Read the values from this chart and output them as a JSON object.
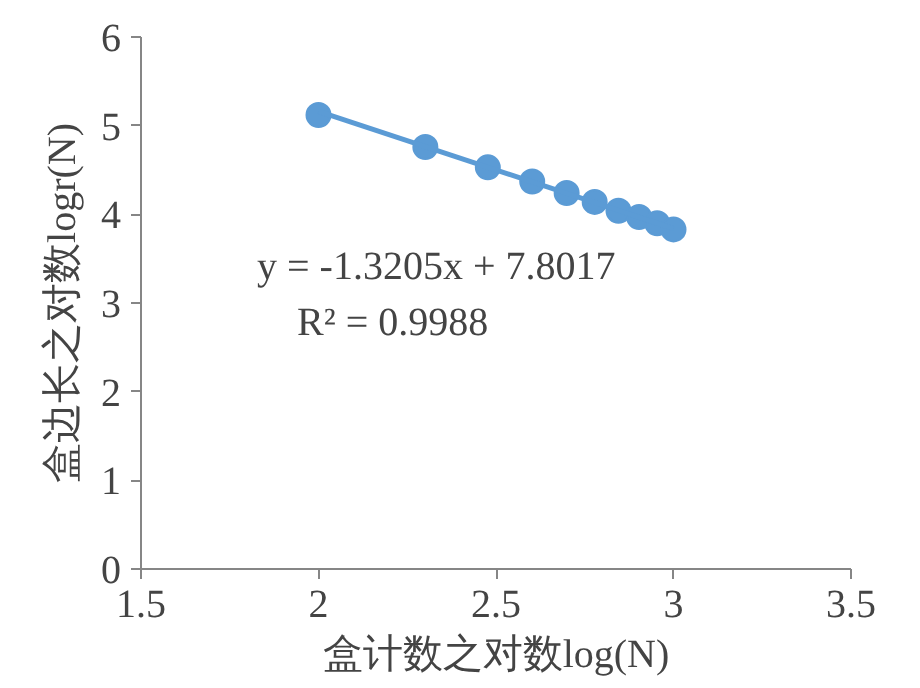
{
  "chart_data": {
    "type": "scatter",
    "xlabel": "盒计数之对数log(N)",
    "ylabel": "盒边长之对数logr(N)",
    "xlim": [
      1.5,
      3.5
    ],
    "xticks": [
      1.5,
      2,
      2.5,
      3,
      3.5
    ],
    "ylim": [
      0,
      6
    ],
    "yticks": [
      0,
      1,
      2,
      3,
      4,
      5,
      6
    ],
    "series": [
      {
        "color": "#5b9bd5",
        "marker": "circle",
        "x": [
          2,
          2.301,
          2.477,
          2.602,
          2.699,
          2.778,
          2.845,
          2.903,
          2.954,
          3
        ],
        "values": [
          5.12,
          4.76,
          4.53,
          4.37,
          4.24,
          4.14,
          4.04,
          3.97,
          3.9,
          3.83
        ]
      },
      {
        "type": "line",
        "color": "#5b9bd5",
        "line_style": "solid",
        "x": [
          2,
          3
        ],
        "values": [
          5.16,
          3.84
        ]
      }
    ],
    "annotations": [
      "y = -1.3205x + 7.8017",
      "R² = 0.9988"
    ],
    "grid": false
  }
}
